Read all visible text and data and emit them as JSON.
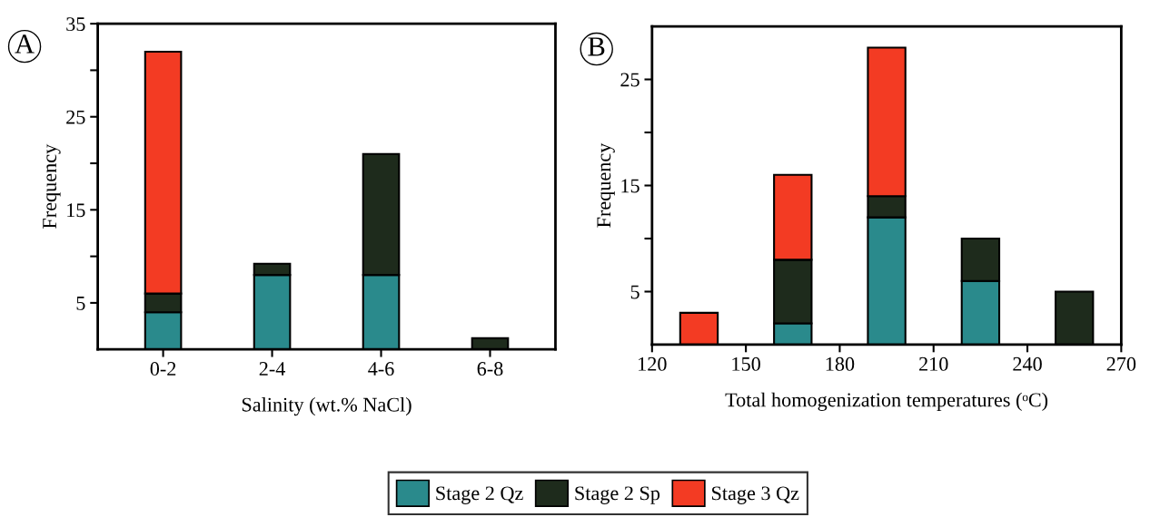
{
  "chart_data": [
    {
      "type": "bar",
      "stacked": true,
      "xlabel": "Salinity (wt.% NaCl)",
      "ylabel": "Frequency",
      "annotations": [
        "A"
      ],
      "legend": "bottom",
      "categories": [
        "0-2",
        "2-4",
        "4-6",
        "6-8"
      ],
      "ylim": [
        0,
        35
      ],
      "yticks": [
        5,
        {
          "value": 10,
          "label": null
        },
        15,
        {
          "value": 20,
          "label": null
        },
        25,
        {
          "value": 30,
          "label": null
        },
        35
      ],
      "series": [
        {
          "name": "Stage 2 Qz",
          "color": "#2a8a8c",
          "values": [
            4,
            8,
            8,
            0
          ]
        },
        {
          "name": "Stage 2 Sp",
          "color": "#1e2b1c",
          "values": [
            2,
            1.2,
            13,
            1.2
          ]
        },
        {
          "name": "Stage 3 Qz",
          "color": "#f33b23",
          "values": [
            26,
            0,
            0,
            0
          ]
        }
      ]
    },
    {
      "type": "bar",
      "stacked": true,
      "xlabel": "Total homogenization temperatures (ᵒC)",
      "ylabel": "Frequency",
      "annotations": [
        "B"
      ],
      "x": [
        135,
        165,
        195,
        225,
        255
      ],
      "xlim": [
        120,
        270
      ],
      "xticks": [
        120,
        150,
        180,
        210,
        240,
        270
      ],
      "ylim": [
        0,
        30
      ],
      "yticks": [
        5,
        {
          "value": 10,
          "label": null
        },
        15,
        {
          "value": 20,
          "label": null
        },
        25
      ],
      "series": [
        {
          "color": "#2a8a8c",
          "values": [
            0,
            2,
            12,
            6,
            0
          ]
        },
        {
          "color": "#1e2b1c",
          "values": [
            0,
            6,
            2,
            4,
            5
          ]
        },
        {
          "color": "#f33b23",
          "values": [
            3,
            8,
            14,
            0,
            0
          ]
        }
      ]
    }
  ]
}
